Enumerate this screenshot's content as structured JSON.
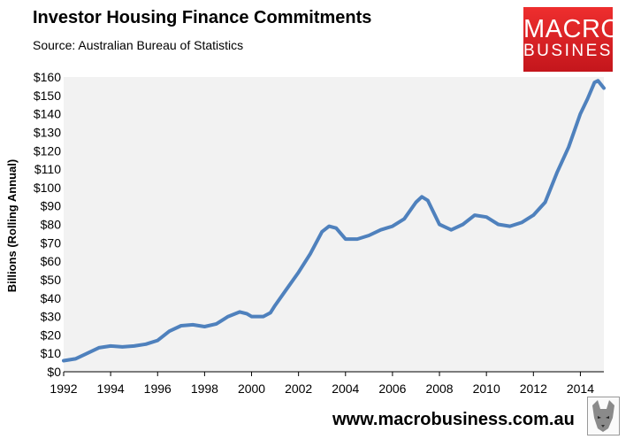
{
  "header": {
    "title": "Investor Housing Finance Commitments",
    "subtitle": "Source: Australian Bureau of Statistics"
  },
  "logo": {
    "line1": "MACRO",
    "line2": "BUSINESS"
  },
  "footer": {
    "website": "www.macrobusiness.com.au"
  },
  "colors": {
    "series": "#4f81bd",
    "plot_background": "#f2f2f2",
    "logo_background": "#e01f26"
  },
  "chart_data": {
    "type": "line",
    "ylabel": "Billions (Rolling Annual)",
    "xlabel": "",
    "xlim": [
      1992,
      2015
    ],
    "ylim": [
      0,
      160
    ],
    "grid": false,
    "legend": "none",
    "x_ticks": [
      1992,
      1994,
      1996,
      1998,
      2000,
      2002,
      2004,
      2006,
      2008,
      2010,
      2012,
      2014
    ],
    "y_ticks": [
      "$0",
      "$10",
      "$20",
      "$30",
      "$40",
      "$50",
      "$60",
      "$70",
      "$80",
      "$90",
      "$100",
      "$110",
      "$120",
      "$130",
      "$140",
      "$150",
      "$160"
    ],
    "series": [
      {
        "x": [
          1992.0,
          1992.5,
          1993.0,
          1993.5,
          1994.0,
          1994.5,
          1995.0,
          1995.5,
          1996.0,
          1996.5,
          1997.0,
          1997.5,
          1998.0,
          1998.5,
          1999.0,
          1999.5,
          1999.8,
          2000.0,
          2000.5,
          2000.8,
          2001.0,
          2001.5,
          2002.0,
          2002.5,
          2003.0,
          2003.3,
          2003.6,
          2004.0,
          2004.5,
          2005.0,
          2005.5,
          2006.0,
          2006.5,
          2007.0,
          2007.25,
          2007.5,
          2008.0,
          2008.5,
          2009.0,
          2009.5,
          2010.0,
          2010.5,
          2011.0,
          2011.5,
          2012.0,
          2012.5,
          2013.0,
          2013.5,
          2014.0,
          2014.3,
          2014.6,
          2014.75,
          2015.0
        ],
        "y": [
          6,
          7,
          10,
          13,
          14,
          13.5,
          14,
          15,
          17,
          22,
          25,
          25.5,
          24.5,
          26,
          30,
          32.5,
          31.5,
          30,
          30,
          32,
          36,
          45,
          54,
          64,
          76,
          79,
          78,
          72,
          72,
          74,
          77,
          79,
          83,
          92,
          95,
          93,
          80,
          77,
          80,
          85,
          84,
          80,
          79,
          81,
          85,
          92,
          108,
          122,
          140,
          148,
          157,
          158,
          154
        ]
      }
    ]
  }
}
